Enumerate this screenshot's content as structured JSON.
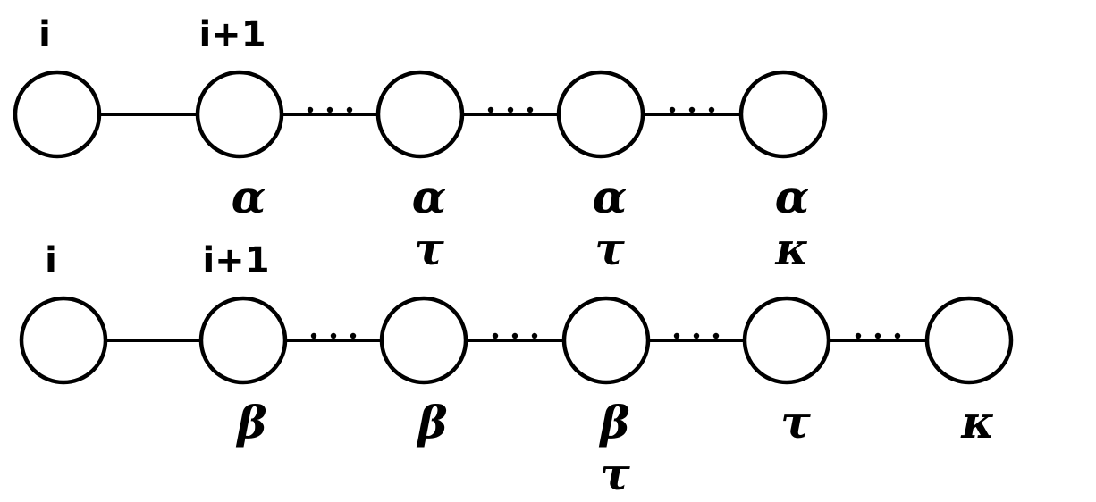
{
  "rows": [
    {
      "top_labels": [
        "i",
        "i+1",
        "",
        "",
        ""
      ],
      "edge_types": [
        "solid",
        "dotted",
        "dotted",
        "dotted"
      ],
      "bottom_labels": [
        [],
        [
          "α"
        ],
        [
          "α",
          "τ"
        ],
        [
          "α",
          "τ"
        ],
        [
          "α",
          "κ"
        ]
      ]
    },
    {
      "top_labels": [
        "i",
        "i+1",
        "",
        "",
        "",
        ""
      ],
      "edge_types": [
        "solid",
        "dotted",
        "dotted",
        "dotted",
        "dotted"
      ],
      "bottom_labels": [
        [],
        [
          "β"
        ],
        [
          "β"
        ],
        [
          "β",
          "τ"
        ],
        [
          "τ"
        ],
        [
          "κ"
        ]
      ]
    }
  ],
  "colors": {
    "ink": "#000000",
    "background": "#ffffff"
  }
}
